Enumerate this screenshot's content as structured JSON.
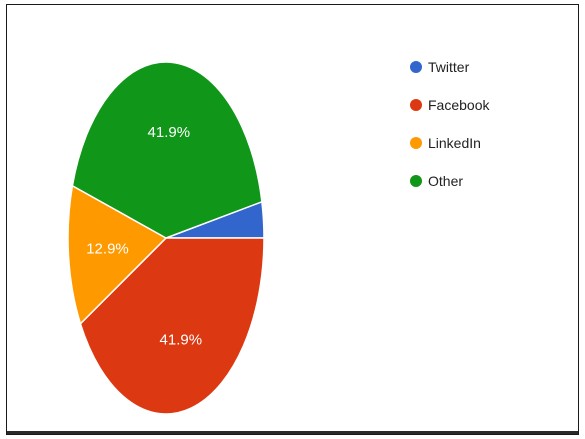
{
  "chart_data": {
    "type": "pie",
    "title": "",
    "legend_position": "right",
    "slices": [
      {
        "label": "Twitter",
        "value": 3.3,
        "color": "#3366cc",
        "display": ""
      },
      {
        "label": "Facebook",
        "value": 41.9,
        "color": "#dc3912",
        "display": "41.9%"
      },
      {
        "label": "LinkedIn",
        "value": 12.9,
        "color": "#ff9900",
        "display": "12.9%"
      },
      {
        "label": "Other",
        "value": 41.9,
        "color": "#109618",
        "display": "41.9%"
      }
    ]
  }
}
